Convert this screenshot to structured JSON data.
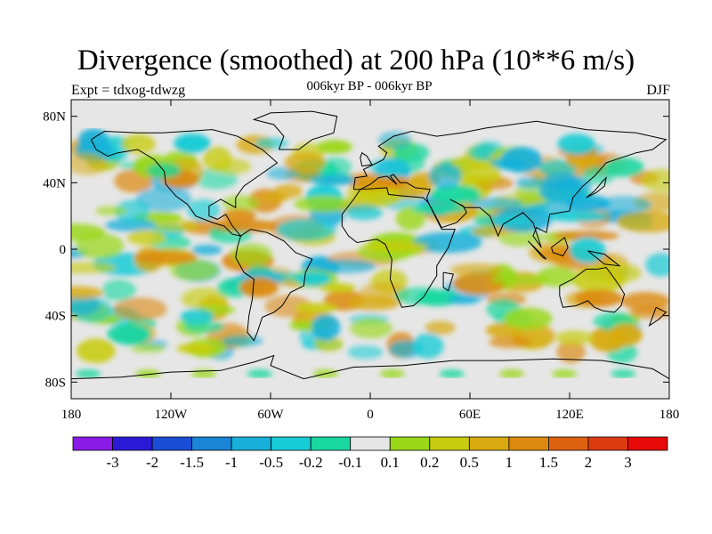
{
  "title": "Divergence (smoothed) at 200 hPa (10**6 m/s)",
  "subtitle": "006kyr BP - 006kyr BP",
  "left_label": "Expt = tdxog-tdwzg",
  "right_label": "DJF",
  "map": {
    "projection": "cylindrical equidistant",
    "lon_range": [
      -180,
      180
    ],
    "lat_range": [
      -90,
      90
    ],
    "x_ticks": [
      {
        "lon": -180,
        "label": "180"
      },
      {
        "lon": -120,
        "label": "120W"
      },
      {
        "lon": -60,
        "label": "60W"
      },
      {
        "lon": 0,
        "label": "0"
      },
      {
        "lon": 60,
        "label": "60E"
      },
      {
        "lon": 120,
        "label": "120E"
      },
      {
        "lon": 180,
        "label": "180"
      }
    ],
    "y_ticks": [
      {
        "lat": 80,
        "label": "80N"
      },
      {
        "lat": 40,
        "label": "40N"
      },
      {
        "lat": 0,
        "label": "0"
      },
      {
        "lat": -40,
        "label": "40S"
      },
      {
        "lat": -80,
        "label": "80S"
      }
    ],
    "missing_color": "#e6e6e6",
    "coast_color": "#000000"
  },
  "colorbar": {
    "colors": [
      "#8a1ae6",
      "#2a1ad6",
      "#1a4ed6",
      "#1a84d6",
      "#18b0da",
      "#18ccd6",
      "#18d8a0",
      "#e6e6e6",
      "#9ad818",
      "#c8cc10",
      "#d8aa10",
      "#dc8a10",
      "#dc6210",
      "#dc3a10",
      "#e60a0a"
    ],
    "labels": [
      "-3",
      "-2",
      "-1.5",
      "-1",
      "-0.5",
      "-0.2",
      "-0.1",
      "0.1",
      "0.2",
      "0.5",
      "1",
      "1.5",
      "2",
      "3"
    ]
  }
}
